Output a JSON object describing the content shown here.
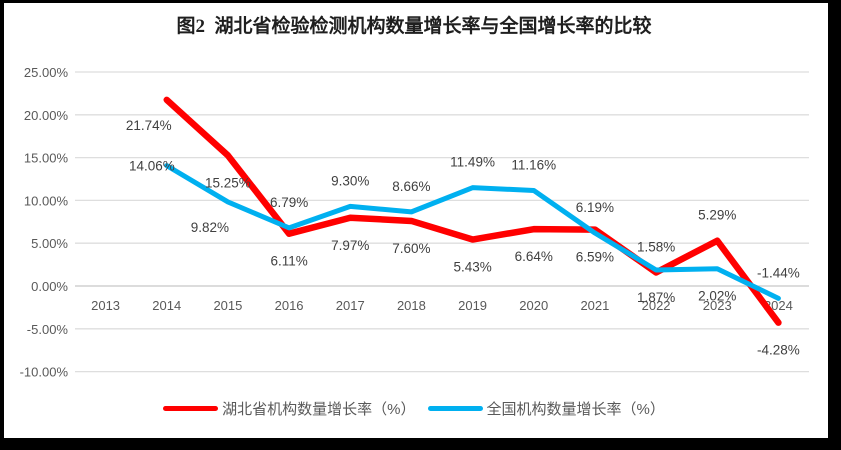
{
  "frame": {
    "border_color": "#000000",
    "background": "#ffffff"
  },
  "chart_data": {
    "type": "line",
    "title": "图2  湖北省检验检测机构数量增长率与全国增长率的比较",
    "categories": [
      "2013",
      "2014",
      "2015",
      "2016",
      "2017",
      "2018",
      "2019",
      "2020",
      "2021",
      "2022",
      "2023",
      "2024"
    ],
    "series": [
      {
        "name": "湖北省机构数量增长率（%）",
        "color": "#FF0000",
        "values": [
          null,
          21.74,
          15.25,
          6.11,
          7.97,
          7.6,
          5.43,
          6.64,
          6.59,
          1.58,
          5.29,
          -4.28
        ],
        "labels": [
          null,
          "21.74%",
          "15.25%",
          "6.11%",
          "7.97%",
          "7.60%",
          "5.43%",
          "6.64%",
          "6.59%",
          "1.58%",
          "5.29%",
          "-4.28%"
        ],
        "label_pos": [
          null,
          "below-left",
          "below",
          "below",
          "below",
          "below",
          "below",
          "below",
          "below",
          "above",
          "above",
          "below"
        ]
      },
      {
        "name": "全国机构数量增长率（%）",
        "color": "#00B0F0",
        "values": [
          null,
          14.06,
          9.82,
          6.79,
          9.3,
          8.66,
          11.49,
          11.16,
          6.19,
          1.87,
          2.02,
          -1.44
        ],
        "labels": [
          null,
          "14.06%",
          "9.82%",
          "6.79%",
          "9.30%",
          "8.66%",
          "11.49%",
          "11.16%",
          "6.19%",
          "1.87%",
          "2.02%",
          "-1.44%"
        ],
        "label_pos": [
          null,
          "left",
          "below-left",
          "above",
          "above",
          "above",
          "above",
          "above",
          "above",
          "below",
          "below",
          "above"
        ]
      }
    ],
    "y_axis": {
      "ticks": [
        "25.00%",
        "20.00%",
        "15.00%",
        "10.00%",
        "5.00%",
        "0.00%",
        "-5.00%",
        "-10.00%"
      ],
      "max": 25,
      "min": -10,
      "step": 5
    },
    "grid": true,
    "gridline_color": "#dedede",
    "zero_line_color": "#c8c8c8",
    "legend_position": "bottom"
  }
}
